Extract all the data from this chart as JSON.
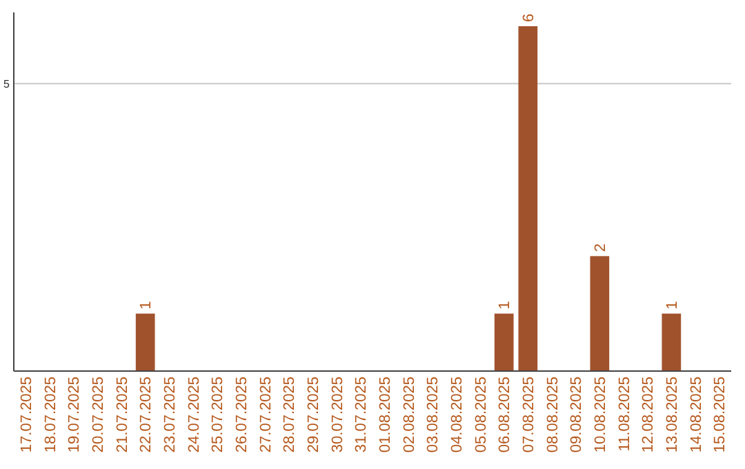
{
  "chart_data": {
    "type": "bar",
    "categories": [
      "17.07.2025",
      "18.07.2025",
      "19.07.2025",
      "20.07.2025",
      "21.07.2025",
      "22.07.2025",
      "23.07.2025",
      "24.07.2025",
      "25.07.2025",
      "26.07.2025",
      "27.07.2025",
      "28.07.2025",
      "29.07.2025",
      "30.07.2025",
      "31.07.2025",
      "01.08.2025",
      "02.08.2025",
      "03.08.2025",
      "04.08.2025",
      "05.08.2025",
      "06.08.2025",
      "07.08.2025",
      "08.08.2025",
      "09.08.2025",
      "10.08.2025",
      "11.08.2025",
      "12.08.2025",
      "13.08.2025",
      "14.08.2025",
      "15.08.2025"
    ],
    "values": [
      0,
      0,
      0,
      0,
      0,
      1,
      0,
      0,
      0,
      0,
      0,
      0,
      0,
      0,
      0,
      0,
      0,
      0,
      0,
      0,
      1,
      6,
      0,
      0,
      2,
      0,
      0,
      1,
      0,
      0
    ],
    "value_labels": [
      null,
      null,
      null,
      null,
      null,
      "1",
      null,
      null,
      null,
      null,
      null,
      null,
      null,
      null,
      null,
      null,
      null,
      null,
      null,
      null,
      "1",
      "6",
      null,
      null,
      "2",
      null,
      null,
      "1",
      null,
      null
    ],
    "color": "#a0522d",
    "ylim": [
      0,
      6
    ],
    "yticks": [
      5
    ],
    "grid": "y"
  }
}
